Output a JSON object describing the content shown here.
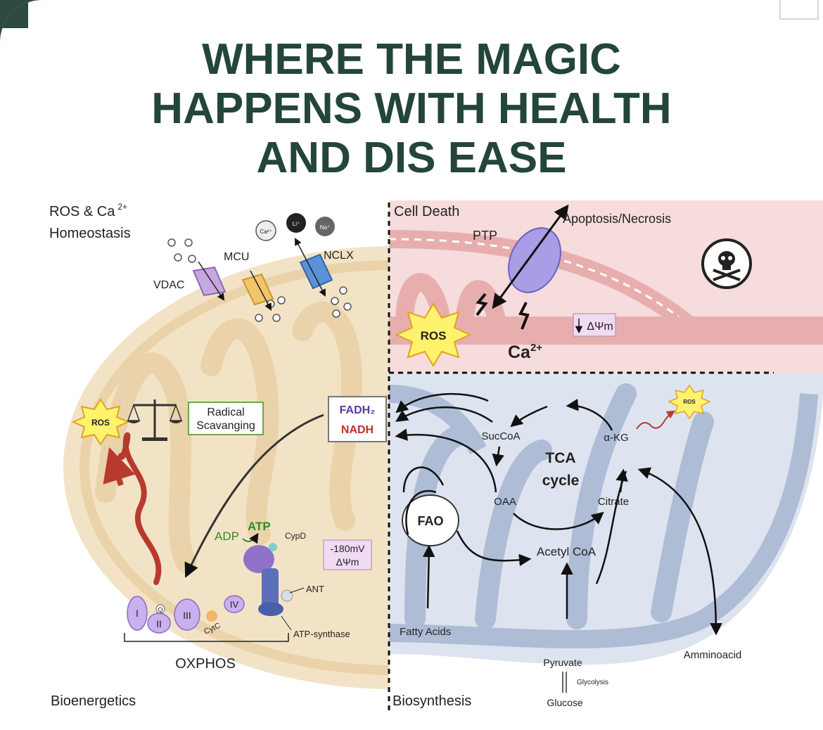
{
  "title": {
    "line1": "WHERE THE MAGIC",
    "line2": "HAPPENS WITH HEALTH",
    "line3": "AND DIS EASE"
  },
  "quadrants": {
    "ros_ca": {
      "line1": "ROS & Ca",
      "sup": "2+",
      "line2": "Homeostasis"
    },
    "cell_death": "Cell Death",
    "bioenergetics": "Bioenergetics",
    "biosynthesis": "Biosynthesis"
  },
  "homeostasis": {
    "vdac": "VDAC",
    "mcu": "MCU",
    "nclx": "NCLX",
    "ion_ca": "Ca²⁺",
    "ion_li": "Li⁺",
    "ion_na": "Na⁺"
  },
  "cell_death": {
    "ptp": "PTP",
    "apoptosis": "Apoptosis/Necrosis",
    "ros": "ROS",
    "ca": "Ca",
    "ca_sup": "2+",
    "delta_psi": "ΔΨm"
  },
  "bioenergetics": {
    "ros": "ROS",
    "radical_line1": "Radical",
    "radical_line2": "Scavanging",
    "fadh": "FADH₂",
    "nadh": "NADH",
    "adp": "ADP",
    "atp": "ATP",
    "cypd": "CypD",
    "mv_line1": "-180mV",
    "mv_line2": "ΔΨm",
    "ant": "ANT",
    "atp_synthase": "ATP-synthase",
    "complex_i": "I",
    "complex_ii": "II",
    "complex_iii": "III",
    "complex_iv": "IV",
    "q": "Q",
    "cytc": "CytC",
    "oxphos": "OXPHOS"
  },
  "biosynthesis": {
    "tca_line1": "TCA",
    "tca_line2": "cycle",
    "succoa": "SucCoA",
    "akg": "α-KG",
    "oaa": "OAA",
    "citrate": "Citrate",
    "acetyl_coa": "Acetyl CoA",
    "fao": "FAO",
    "fatty_acids": "Fatty Acids",
    "pyruvate": "Pyruvate",
    "glycolysis": "Glycolysis",
    "glucose": "Glucose",
    "amminoacid": "Amminoacid",
    "ros": "ROS"
  },
  "colors": {
    "title": "#23453a",
    "frame": "#2c4a3d",
    "beige": "#f3e3c6",
    "beige_dark": "#ead3aa",
    "pink": "#f6dcdc",
    "pink_dark": "#e8aeae",
    "blue": "#dde4ef",
    "blue_dark": "#aebcd6",
    "ros_yellow": "#fff36e",
    "purple": "#b99ee6",
    "green_label": "#2f8a2a"
  }
}
